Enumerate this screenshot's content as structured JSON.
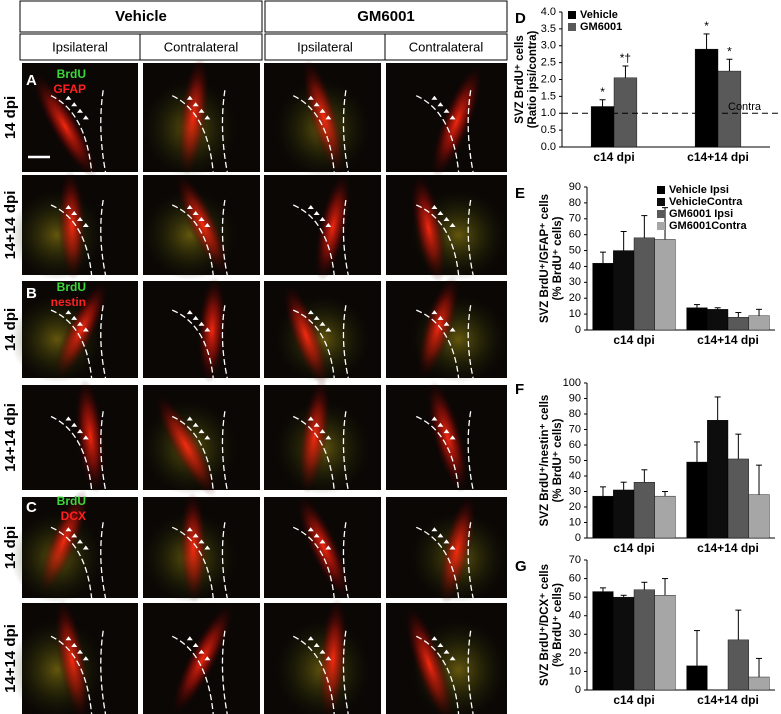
{
  "header": {
    "groups": [
      "Vehicle",
      "GM6001"
    ],
    "sides": [
      "Ipsilateral",
      "Contralateral",
      "Ipsilateral",
      "Contralateral"
    ]
  },
  "rows": [
    "14 dpi",
    "14+14 dpi",
    "14 dpi",
    "14+14 dpi",
    "14 dpi",
    "14+14 dpi"
  ],
  "panels": [
    {
      "letter": "A",
      "markers": [
        "BrdU",
        "GFAP"
      ]
    },
    {
      "letter": "B",
      "markers": [
        "BrdU",
        "nestin"
      ]
    },
    {
      "letter": "C",
      "markers": [
        "BrdU",
        "DCX"
      ]
    }
  ],
  "chart_data": [
    {
      "type": "bar",
      "panel": "D",
      "ylabel": [
        "SVZ BrdU⁺ cells",
        "(Ratio ipsi/contra)"
      ],
      "categories": [
        "c14 dpi",
        "c14+14 dpi"
      ],
      "series": [
        {
          "name": "Vehicle",
          "color": "#000000",
          "values": [
            1.2,
            2.9
          ],
          "errors": [
            0.2,
            0.45
          ],
          "value_annotations": [
            "*",
            "*"
          ]
        },
        {
          "name": "GM6001",
          "color": "#595959",
          "values": [
            2.05,
            2.25
          ],
          "errors": [
            0.35,
            0.35
          ],
          "value_annotations": [
            "*†",
            "*"
          ]
        }
      ],
      "ylim": [
        0,
        4
      ],
      "yticks": [
        {
          "value": 0,
          "label": "0.0"
        },
        {
          "value": 0.5,
          "label": "0.5"
        },
        {
          "value": 1,
          "label": "1.0"
        },
        {
          "value": 1.5,
          "label": "1.5"
        },
        {
          "value": 2,
          "label": "2.0"
        },
        {
          "value": 2.5,
          "label": "2.5"
        },
        {
          "value": 3,
          "label": "3.0"
        },
        {
          "value": 3.5,
          "label": "3.5"
        },
        {
          "value": 4,
          "label": "4.0"
        }
      ],
      "reference_line": {
        "value": 1,
        "label": "Contra"
      },
      "legend": "upper left"
    },
    {
      "type": "bar",
      "panel": "E",
      "ylabel": [
        "SVZ BrdU⁺/GFAP⁺ cells",
        "(% BrdU⁺ cells)"
      ],
      "categories": [
        "c14 dpi",
        "c14+14 dpi"
      ],
      "series": [
        {
          "name": "Vehicle Ipsi",
          "color": "#000000",
          "values": [
            42,
            14
          ],
          "errors": [
            7,
            2
          ]
        },
        {
          "name": "VehicleContra",
          "color": "#0d0d0d",
          "values": [
            50,
            13
          ],
          "errors": [
            12,
            1
          ]
        },
        {
          "name": "GM6001 Ipsi",
          "color": "#595959",
          "values": [
            58,
            8
          ],
          "errors": [
            14,
            3
          ]
        },
        {
          "name": "GM6001Contra",
          "color": "#a6a6a6",
          "values": [
            57,
            9
          ],
          "errors": [
            20,
            4
          ]
        }
      ],
      "ylim": [
        0,
        90
      ],
      "yticks": [
        0,
        10,
        20,
        30,
        40,
        50,
        60,
        70,
        80,
        90
      ],
      "legend": "upper right"
    },
    {
      "type": "bar",
      "panel": "F",
      "ylabel": [
        "SVZ BrdU⁺/nestin⁺ cells",
        "(% BrdU⁺ cells)"
      ],
      "categories": [
        "c14 dpi",
        "c14+14 dpi"
      ],
      "series": [
        {
          "color": "#000000",
          "values": [
            27,
            49
          ],
          "errors": [
            6,
            13
          ]
        },
        {
          "color": "#0d0d0d",
          "values": [
            31,
            76
          ],
          "errors": [
            5,
            15
          ]
        },
        {
          "color": "#595959",
          "values": [
            36,
            51
          ],
          "errors": [
            8,
            16
          ]
        },
        {
          "color": "#a6a6a6",
          "values": [
            27,
            28
          ],
          "errors": [
            3,
            19
          ]
        }
      ],
      "ylim": [
        0,
        100
      ],
      "yticks": [
        0,
        10,
        20,
        30,
        40,
        50,
        60,
        70,
        80,
        90,
        100
      ]
    },
    {
      "type": "bar",
      "panel": "G",
      "ylabel": [
        "SVZ BrdU⁺/DCX⁺ cells",
        "(% BrdU⁺ cells)"
      ],
      "categories": [
        "c14 dpi",
        "c14+14 dpi"
      ],
      "series": [
        {
          "color": "#000000",
          "values": [
            53,
            13
          ],
          "errors": [
            2,
            19
          ]
        },
        {
          "color": "#0d0d0d",
          "values": [
            50,
            0
          ],
          "errors": [
            1,
            0
          ]
        },
        {
          "color": "#595959",
          "values": [
            54,
            27
          ],
          "errors": [
            4,
            16
          ]
        },
        {
          "color": "#a6a6a6",
          "values": [
            51,
            7
          ],
          "errors": [
            9,
            10
          ]
        }
      ],
      "ylim": [
        0,
        70
      ],
      "yticks": [
        0,
        10,
        20,
        30,
        40,
        50,
        60,
        70
      ]
    }
  ]
}
